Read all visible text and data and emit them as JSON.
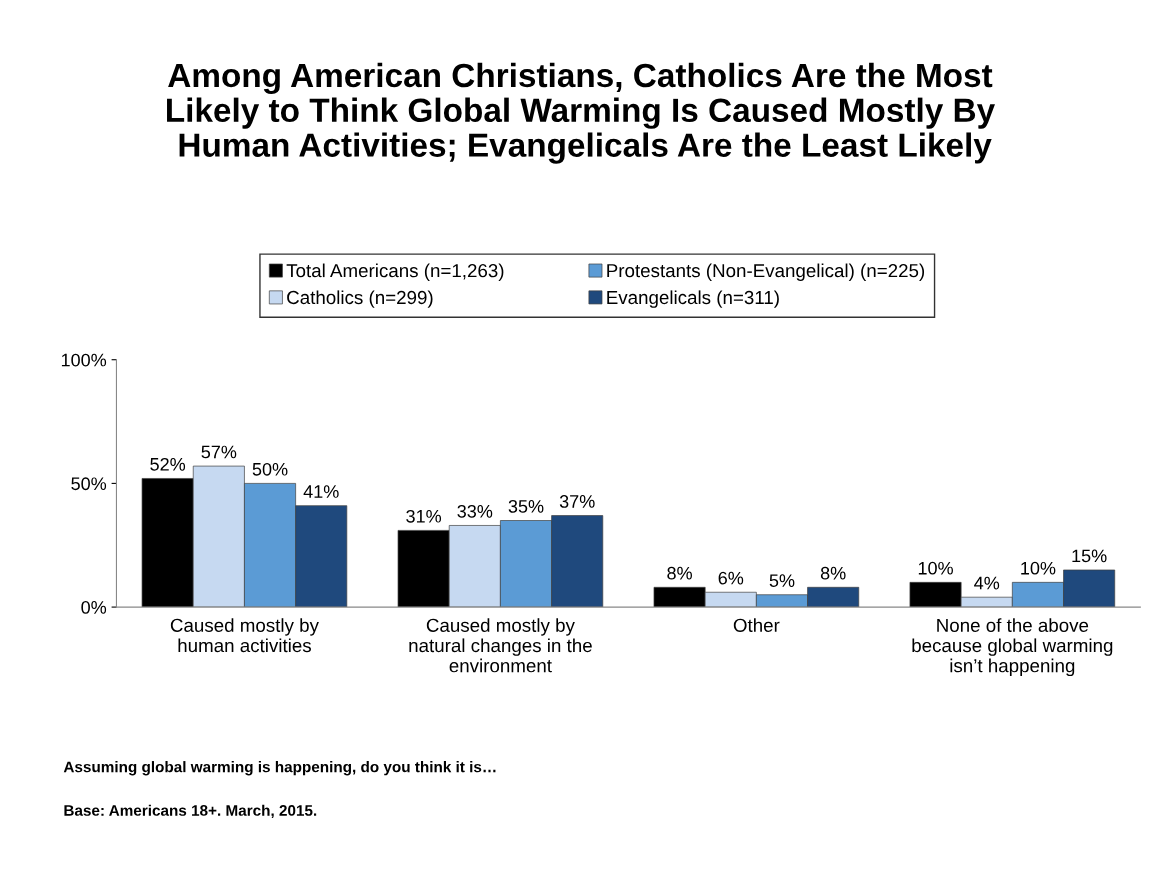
{
  "chart_data": {
    "type": "bar",
    "title": "Among American Christians, Catholics Are the Most\nLikely to Think Global Warming Is Caused Mostly By\n Human Activities; Evangelicals Are the Least Likely",
    "categories": [
      "Caused mostly by\nhuman activities",
      "Caused mostly by\nnatural changes in the\nenvironment",
      "Other",
      "None of the above\nbecause global warming\nisn’t happening"
    ],
    "series": [
      {
        "name": "Total Americans (n=1,263)",
        "color": "#000000",
        "values": [
          52,
          31,
          8,
          10
        ],
        "value_labels": [
          "52%",
          "31%",
          "8%",
          "10%"
        ]
      },
      {
        "name": "Catholics (n=299)",
        "color": "#c6d9f1",
        "values": [
          57,
          33,
          6,
          4
        ],
        "value_labels": [
          "57%",
          "33%",
          "6%",
          "4%"
        ]
      },
      {
        "name": "Protestants (Non-Evangelical) (n=225)",
        "color": "#5b9bd5",
        "values": [
          50,
          35,
          5,
          10
        ],
        "value_labels": [
          "50%",
          "35%",
          "5%",
          "10%"
        ]
      },
      {
        "name": "Evangelicals (n=311)",
        "color": "#1f497d",
        "values": [
          41,
          37,
          8,
          15
        ],
        "value_labels": [
          "41%",
          "37%",
          "8%",
          "15%"
        ]
      }
    ],
    "ylim": [
      0,
      100
    ],
    "yticks": [
      {
        "value": 0,
        "label": "0%"
      },
      {
        "value": 50,
        "label": "50%"
      },
      {
        "value": 100,
        "label": "100%"
      }
    ],
    "grid": false,
    "legend": "top",
    "annotations": [
      "Assuming global warming is happening, do you think it is…",
      "Base: Americans 18+. March, 2015."
    ]
  }
}
